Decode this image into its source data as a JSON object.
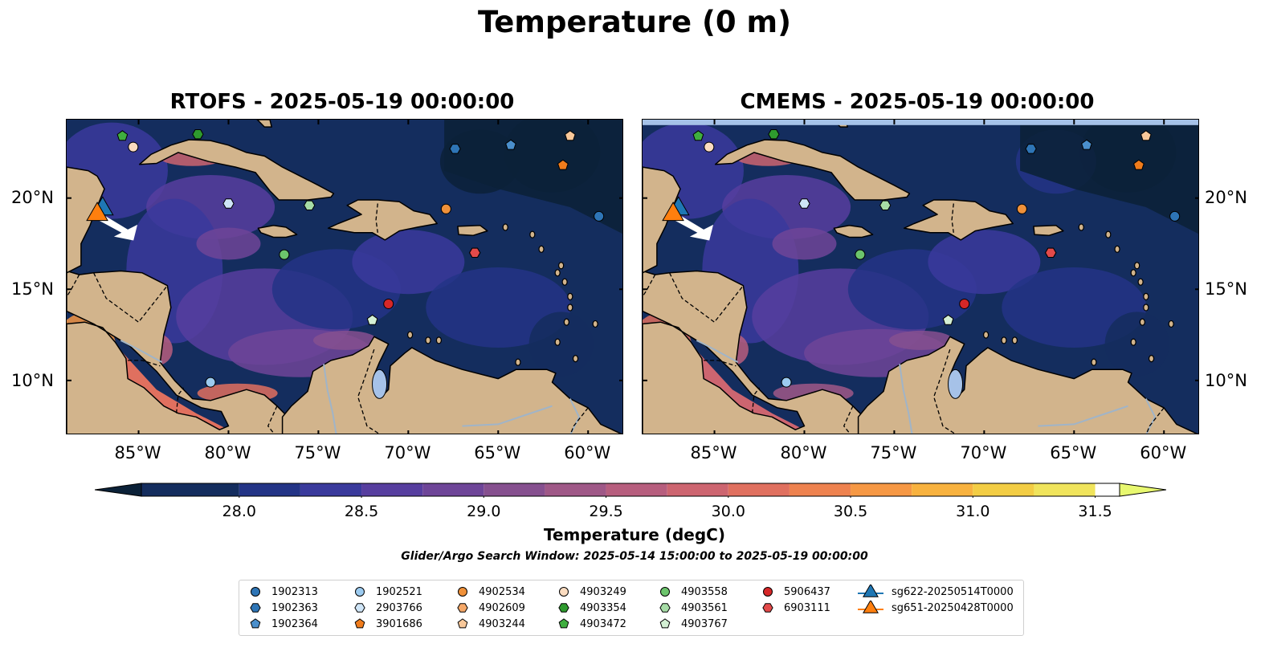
{
  "figure": {
    "title": "Temperature (0 m)",
    "panels": [
      {
        "title": "RTOFS - 2025-05-19 00:00:00"
      },
      {
        "title": "CMEMS - 2025-05-19 00:00:00"
      }
    ],
    "lon_ticks": [
      "85°W",
      "80°W",
      "75°W",
      "70°W",
      "65°W",
      "60°W"
    ],
    "lat_ticks": [
      "20°N",
      "15°N",
      "10°N"
    ],
    "colorbar": {
      "label": "Temperature (degC)",
      "ticks": [
        "28.0",
        "28.5",
        "29.0",
        "29.5",
        "30.0",
        "30.5",
        "31.0",
        "31.5"
      ],
      "range": [
        28.0,
        31.5
      ],
      "extend": "both",
      "colors": [
        "#0b2138",
        "#142d5e",
        "#233486",
        "#3a3a9c",
        "#573e9f",
        "#6e4598",
        "#86508f",
        "#9f5887",
        "#b75e7e",
        "#cd6570",
        "#e0705f",
        "#ee824f",
        "#f69844",
        "#f8b23f",
        "#f3cd44",
        "#f0e45c",
        "#e8f870"
      ]
    },
    "search_window": "Glider/Argo Search Window: 2025-05-14 15:00:00 to 2025-05-19 00:00:00",
    "colors": {
      "land": "#d2b48c",
      "lake": "#a6c2e8",
      "rivers": "#a0b4c8"
    }
  },
  "legend": {
    "position": "lower center",
    "items": [
      {
        "label": "1902313",
        "marker": "circle",
        "color": "#2e75b6"
      },
      {
        "label": "1902363",
        "marker": "hexagon",
        "color": "#2e75b6"
      },
      {
        "label": "1902364",
        "marker": "pentagon",
        "color": "#4a8fcc"
      },
      {
        "label": "1902521",
        "marker": "circle",
        "color": "#9ccbf0"
      },
      {
        "label": "2903766",
        "marker": "hexagon",
        "color": "#cfe5f7"
      },
      {
        "label": "3901686",
        "marker": "pentagon",
        "color": "#f07c1c"
      },
      {
        "label": "4902534",
        "marker": "circle",
        "color": "#f0913a"
      },
      {
        "label": "4902609",
        "marker": "hexagon",
        "color": "#f5a868"
      },
      {
        "label": "4903244",
        "marker": "pentagon",
        "color": "#f8c89a"
      },
      {
        "label": "4903249",
        "marker": "circle",
        "color": "#fbdcc0"
      },
      {
        "label": "4903354",
        "marker": "hexagon",
        "color": "#2e9a2e"
      },
      {
        "label": "4903472",
        "marker": "pentagon",
        "color": "#3fae3f"
      },
      {
        "label": "4903558",
        "marker": "circle",
        "color": "#6cc46c"
      },
      {
        "label": "4903561",
        "marker": "hexagon",
        "color": "#a6dca6"
      },
      {
        "label": "4903767",
        "marker": "pentagon",
        "color": "#d4f0d4"
      },
      {
        "label": "5906437",
        "marker": "circle",
        "color": "#d62728"
      },
      {
        "label": "6903111",
        "marker": "hexagon",
        "color": "#e34a4a"
      },
      {
        "label": "sg622-20250514T0000",
        "marker": "triangle",
        "color": "#1f77b4"
      },
      {
        "label": "sg651-20250428T0000",
        "marker": "triangle",
        "color": "#ff7f0e"
      }
    ]
  },
  "floats": [
    {
      "id": "1902313",
      "lon": -59.4,
      "lat": 19.0
    },
    {
      "id": "1902363",
      "lon": -67.4,
      "lat": 22.7
    },
    {
      "id": "1902364",
      "lon": -64.3,
      "lat": 22.9
    },
    {
      "id": "1902521",
      "lon": -81.0,
      "lat": 9.9
    },
    {
      "id": "2903766",
      "lon": -80.0,
      "lat": 19.7
    },
    {
      "id": "3901686",
      "lon": -61.4,
      "lat": 21.8
    },
    {
      "id": "4902534",
      "lon": -67.9,
      "lat": 19.4
    },
    {
      "id": "4902609",
      "lon": -66.3,
      "lat": 17.0
    },
    {
      "id": "4903244",
      "lon": -61.0,
      "lat": 23.4
    },
    {
      "id": "4903249",
      "lon": -85.3,
      "lat": 22.8
    },
    {
      "id": "4903354",
      "lon": -81.7,
      "lat": 23.5
    },
    {
      "id": "4903472",
      "lon": -85.9,
      "lat": 23.4
    },
    {
      "id": "4903558",
      "lon": -76.9,
      "lat": 16.9
    },
    {
      "id": "4903561",
      "lon": -75.5,
      "lat": 19.6
    },
    {
      "id": "4903767",
      "lon": -72.0,
      "lat": 13.3
    },
    {
      "id": "5906437",
      "lon": -71.1,
      "lat": 14.2
    },
    {
      "id": "6903111",
      "lon": -66.3,
      "lat": 17.0
    }
  ],
  "gliders": [
    {
      "id": "sg622-20250514T0000",
      "lon": -87.0,
      "lat": 19.4
    },
    {
      "id": "sg651-20250428T0000",
      "lon": -87.3,
      "lat": 19.1
    }
  ]
}
